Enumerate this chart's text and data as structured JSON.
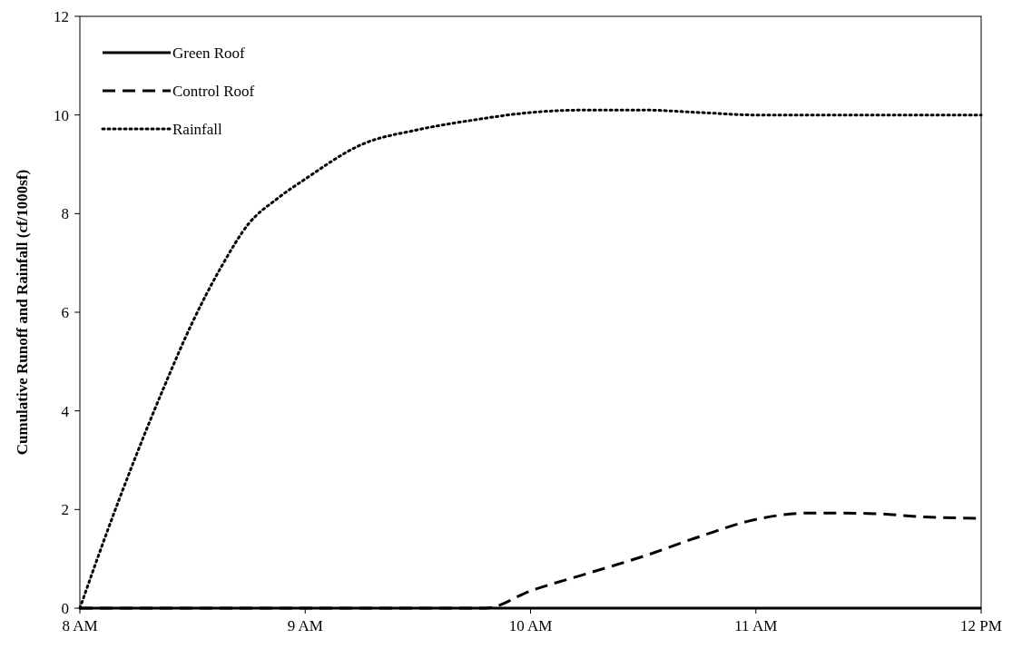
{
  "chart_data": {
    "type": "line",
    "ylabel": "Cumulative Runoff and Rainfall (cf/1000sf)",
    "xlim": [
      8,
      12
    ],
    "xticks": [
      {
        "value": 8,
        "label": "8 AM"
      },
      {
        "value": 9,
        "label": "9 AM"
      },
      {
        "value": 10,
        "label": "10 AM"
      },
      {
        "value": 11,
        "label": "11 AM"
      },
      {
        "value": 12,
        "label": "12 PM"
      }
    ],
    "ylim": [
      0,
      12
    ],
    "yticks": [
      0,
      2,
      4,
      6,
      8,
      10,
      12
    ],
    "legend": "top left",
    "grid": false,
    "series": [
      {
        "name": "Green Roof",
        "color": "#000000",
        "line_style": "solid",
        "x": [
          8,
          9,
          10,
          11,
          12
        ],
        "values": [
          0,
          0,
          0,
          0,
          0
        ]
      },
      {
        "name": "Control Roof",
        "color": "#000000",
        "line_style": "dashed",
        "x": [
          8,
          9,
          9.8,
          10,
          10.25,
          10.5,
          10.75,
          11,
          11.25,
          11.5,
          11.75,
          12
        ],
        "values": [
          0,
          0,
          0,
          0.35,
          0.7,
          1.05,
          1.45,
          1.8,
          1.93,
          1.92,
          1.85,
          1.82
        ]
      },
      {
        "name": "Rainfall",
        "color": "#000000",
        "line_style": "dotted",
        "x": [
          8,
          8.125,
          8.25,
          8.375,
          8.5,
          8.625,
          8.75,
          8.875,
          9,
          9.25,
          9.5,
          9.75,
          10,
          10.25,
          10.5,
          10.75,
          11,
          11.5,
          12
        ],
        "values": [
          0,
          1.6,
          3.1,
          4.5,
          5.8,
          6.9,
          7.8,
          8.3,
          8.7,
          9.4,
          9.7,
          9.9,
          10.05,
          10.1,
          10.1,
          10.05,
          10,
          10,
          10
        ]
      }
    ]
  }
}
